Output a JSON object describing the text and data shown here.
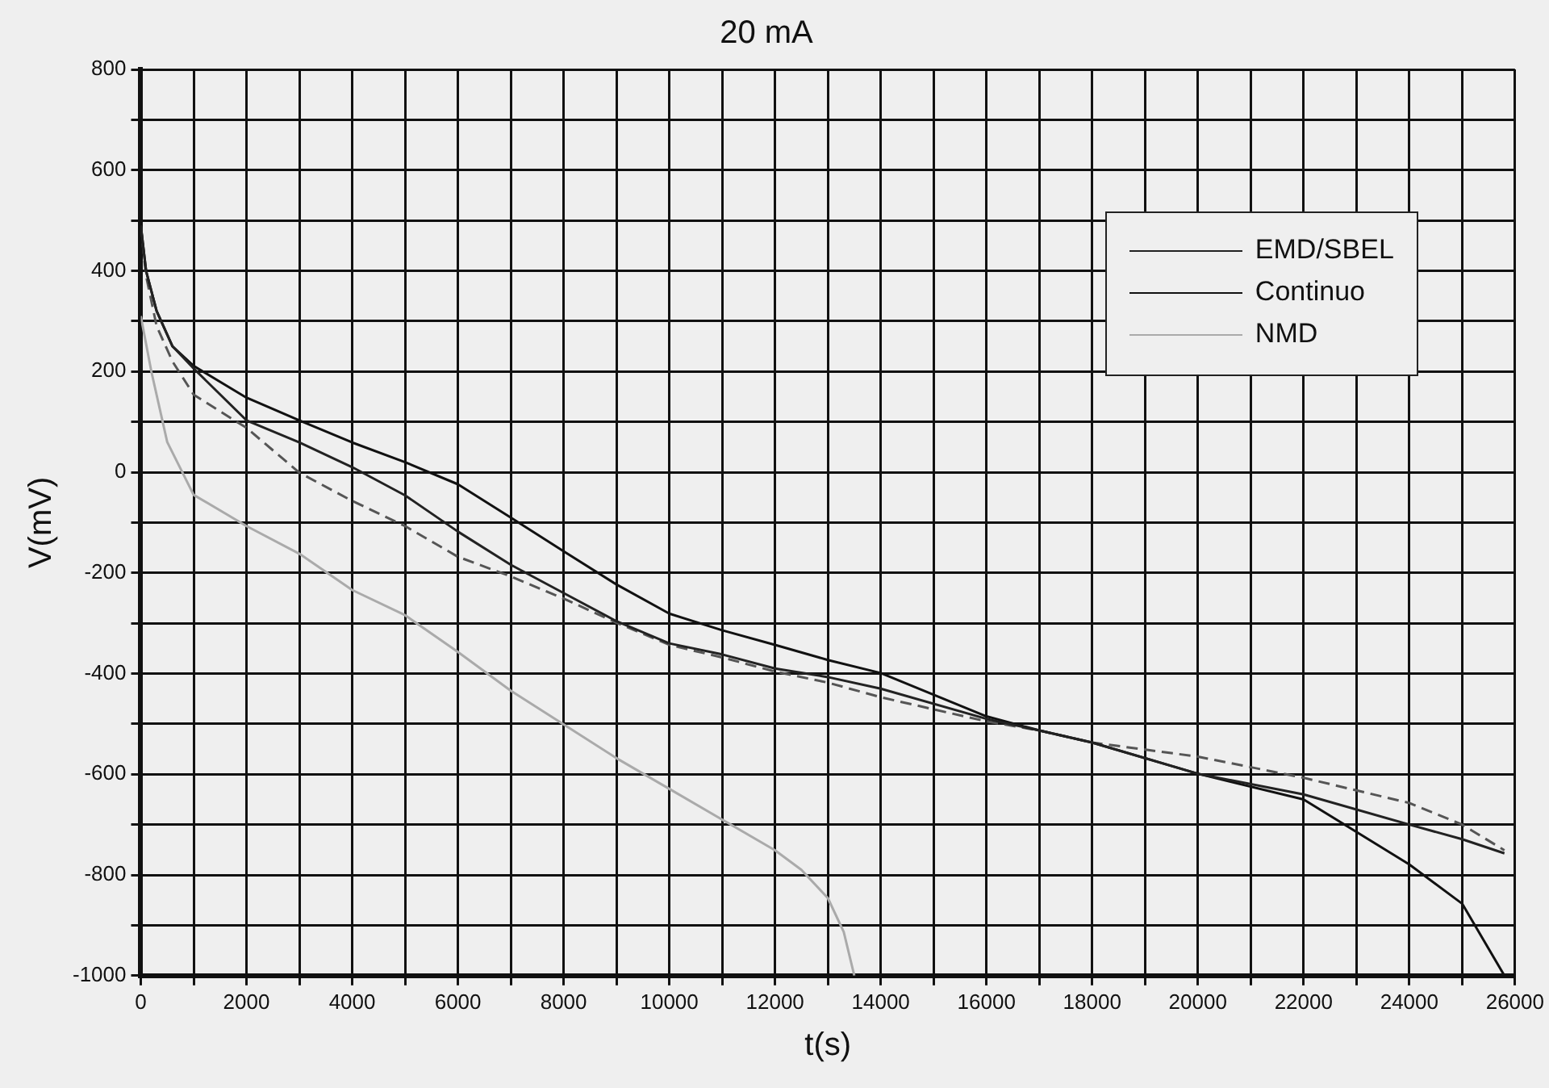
{
  "chart_data": {
    "type": "line",
    "title": "20 mA",
    "xlabel": "t(s)",
    "ylabel": "V(mV)",
    "xlim": [
      0,
      26000
    ],
    "xticks": [
      0,
      {
        "value": 1000,
        "label": null
      },
      2000,
      {
        "value": 3000,
        "label": null
      },
      4000,
      {
        "value": 5000,
        "label": null
      },
      6000,
      {
        "value": 7000,
        "label": null
      },
      8000,
      {
        "value": 9000,
        "label": null
      },
      10000,
      {
        "value": 11000,
        "label": null
      },
      12000,
      {
        "value": 13000,
        "label": null
      },
      14000,
      {
        "value": 15000,
        "label": null
      },
      16000,
      {
        "value": 17000,
        "label": null
      },
      18000,
      {
        "value": 19000,
        "label": null
      },
      20000,
      {
        "value": 21000,
        "label": null
      },
      22000,
      {
        "value": 23000,
        "label": null
      },
      24000,
      {
        "value": 25000,
        "label": null
      },
      26000
    ],
    "ylim": [
      -1000,
      800
    ],
    "yticks": [
      -1000,
      {
        "value": -900,
        "label": null
      },
      -800,
      {
        "value": -700,
        "label": null
      },
      -600,
      {
        "value": -500,
        "label": null
      },
      -400,
      {
        "value": -300,
        "label": null
      },
      -200,
      {
        "value": -100,
        "label": null
      },
      0,
      {
        "value": 100,
        "label": null
      },
      200,
      {
        "value": 300,
        "label": null
      },
      400,
      {
        "value": 500,
        "label": null
      },
      600,
      {
        "value": 700,
        "label": null
      },
      800
    ],
    "grid": true,
    "legend": "top right",
    "marker": "none",
    "series": [
      {
        "name": "EMD/SBEL",
        "color": "#222222",
        "x": [
          0,
          100,
          300,
          600,
          1000,
          2000,
          3000,
          4000,
          5000,
          6000,
          7000,
          8000,
          9000,
          10000,
          11000,
          12000,
          13000,
          14000,
          16000,
          17000,
          18000,
          20000,
          22000,
          24000,
          25000,
          25800
        ],
        "values": [
          490,
          400,
          320,
          250,
          206,
          103,
          59,
          10,
          -46,
          -118,
          -184,
          -240,
          -296,
          -340,
          -362,
          -390,
          -407,
          -430,
          -490,
          -513,
          -537,
          -599,
          -640,
          -700,
          -729,
          -757
        ]
      },
      {
        "name": "Continuo",
        "color": "#111111",
        "x": [
          0,
          100,
          300,
          600,
          1000,
          2000,
          3000,
          4000,
          5000,
          6000,
          7000,
          8000,
          9000,
          10000,
          11000,
          12000,
          13000,
          14000,
          16000,
          17000,
          18000,
          20000,
          22000,
          24000,
          25000,
          25800
        ],
        "values": [
          490,
          400,
          320,
          250,
          211,
          148,
          103,
          59,
          20,
          -24,
          -90,
          -157,
          -223,
          -281,
          -314,
          -343,
          -373,
          -399,
          -485,
          -513,
          -537,
          -599,
          -650,
          -779,
          -857,
          -1000
        ]
      },
      {
        "name": "NMD",
        "color": "#aaaaaa",
        "x": [
          0,
          200,
          500,
          1000,
          2000,
          3000,
          4000,
          5000,
          6000,
          7000,
          8000,
          9000,
          10000,
          11000,
          12000,
          12500,
          13000,
          13300,
          13500
        ],
        "values": [
          310,
          200,
          60,
          -45,
          -107,
          -162,
          -234,
          -284,
          -357,
          -434,
          -501,
          -568,
          -629,
          -690,
          -751,
          -790,
          -846,
          -913,
          -1000
        ]
      },
      {
        "color": "#555555",
        "line_style": "dashed",
        "x": [
          0,
          100,
          300,
          600,
          1000,
          2000,
          3000,
          4000,
          5000,
          6000,
          7000,
          8000,
          9000,
          10000,
          11000,
          12000,
          13000,
          14000,
          16000,
          17000,
          18000,
          20000,
          22000,
          24000,
          25000,
          25800
        ],
        "values": [
          490,
          390,
          290,
          220,
          154,
          88,
          -1,
          -57,
          -107,
          -168,
          -207,
          -251,
          -299,
          -343,
          -368,
          -396,
          -418,
          -447,
          -495,
          -513,
          -537,
          -565,
          -607,
          -657,
          -700,
          -751
        ]
      }
    ]
  }
}
